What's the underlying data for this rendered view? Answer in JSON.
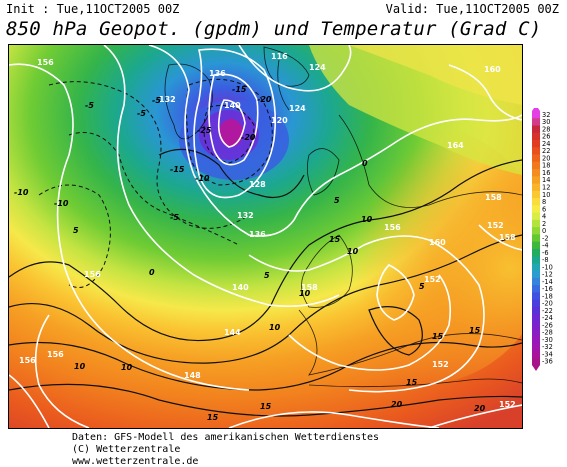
{
  "header": {
    "init": "Init : Tue,11OCT2005 00Z",
    "valid": "Valid: Tue,11OCT2005 00Z",
    "title": "850 hPa Geopot. (gpdm) und Temperatur (Grad C)"
  },
  "colorbar": {
    "values": [
      "32",
      "30",
      "28",
      "26",
      "24",
      "22",
      "20",
      "18",
      "16",
      "14",
      "12",
      "10",
      "8",
      "6",
      "4",
      "2",
      "0",
      "-2",
      "-4",
      "-6",
      "-8",
      "-10",
      "-12",
      "-14",
      "-16",
      "-18",
      "-20",
      "-22",
      "-24",
      "-26",
      "-28",
      "-30",
      "-32",
      "-34",
      "-36"
    ],
    "colors": [
      "#e43ee6",
      "#d23c8a",
      "#c8283c",
      "#d8302a",
      "#e23c22",
      "#e8501e",
      "#ee641c",
      "#f2781e",
      "#f48c20",
      "#f6a024",
      "#f8b42a",
      "#fac832",
      "#fcdc3c",
      "#f6ec46",
      "#d8ee46",
      "#b4e43c",
      "#90d836",
      "#64c832",
      "#3cb83a",
      "#22ac62",
      "#1ca88a",
      "#22a8b4",
      "#2c9cd0",
      "#3484dc",
      "#3a6ae0",
      "#4252e0",
      "#4a3ede",
      "#5a30d8",
      "#6c28d2",
      "#7c22cc",
      "#8a1cc4",
      "#9618bc",
      "#a016b0",
      "#a8149e",
      "#a8148a"
    ]
  },
  "map": {
    "geopotential_labels": [
      "156",
      "136",
      "132",
      "116",
      "124",
      "140",
      "160",
      "120",
      "164",
      "124",
      "128",
      "132",
      "158",
      "156",
      "152",
      "160",
      "136",
      "156",
      "140",
      "144",
      "148",
      "156",
      "158",
      "152",
      "152",
      "158",
      "156",
      "152"
    ],
    "temperature_labels": [
      "-20",
      "-15",
      "-25",
      "-20",
      "-15",
      "-10",
      "-5",
      "-10",
      "-5",
      "0",
      "5",
      "10",
      "5",
      "15",
      "20",
      "15",
      "10",
      "15",
      "10",
      "5",
      "-5",
      "15",
      "5",
      "10",
      "15",
      "20",
      "15",
      "10",
      "-10",
      "-5",
      "0",
      "10"
    ]
  },
  "footer": {
    "line1": "Daten: GFS-Modell des amerikanischen Wetterdienstes",
    "line2": "(C) Wetterzentrale",
    "line3": "www.wetterzentrale.de"
  }
}
